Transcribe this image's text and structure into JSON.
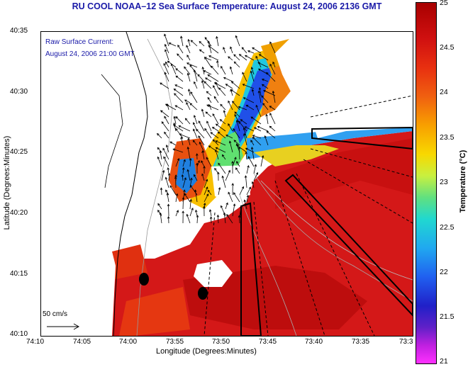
{
  "title": "RU COOL  NOAA–12  Sea Surface Temperature:  August 24, 2006 2136 GMT",
  "current_label": {
    "line1": "Raw Surface Current:",
    "line2": "August 24, 2006 21:00 GMT"
  },
  "scale_label": "50 cm/s",
  "x_axis": {
    "label": "Longitude (Degrees:Minutes)",
    "ticks": [
      "74:10",
      "74:05",
      "74:00",
      "73:55",
      "73:50",
      "73:45",
      "73:40",
      "73:35",
      "73:3"
    ]
  },
  "y_axis": {
    "label": "Latitude (Degrees:Minutes)",
    "ticks": [
      "40:35",
      "40:30",
      "40:25",
      "40:20",
      "40:15",
      "40:10"
    ]
  },
  "colorbar": {
    "label": "Temperature (°C)",
    "ticks": [
      "25",
      "24.5",
      "24",
      "23.5",
      "23",
      "22.5",
      "22",
      "21.5",
      "21"
    ],
    "min": 21,
    "max": 25,
    "colors": {
      "warm": "#d01010",
      "hot": "#a80000",
      "orange": "#f06010",
      "yellow": "#f8d800",
      "cyan": "#20d8d0",
      "blue": "#2060f0",
      "magenta": "#ff30ff"
    }
  }
}
